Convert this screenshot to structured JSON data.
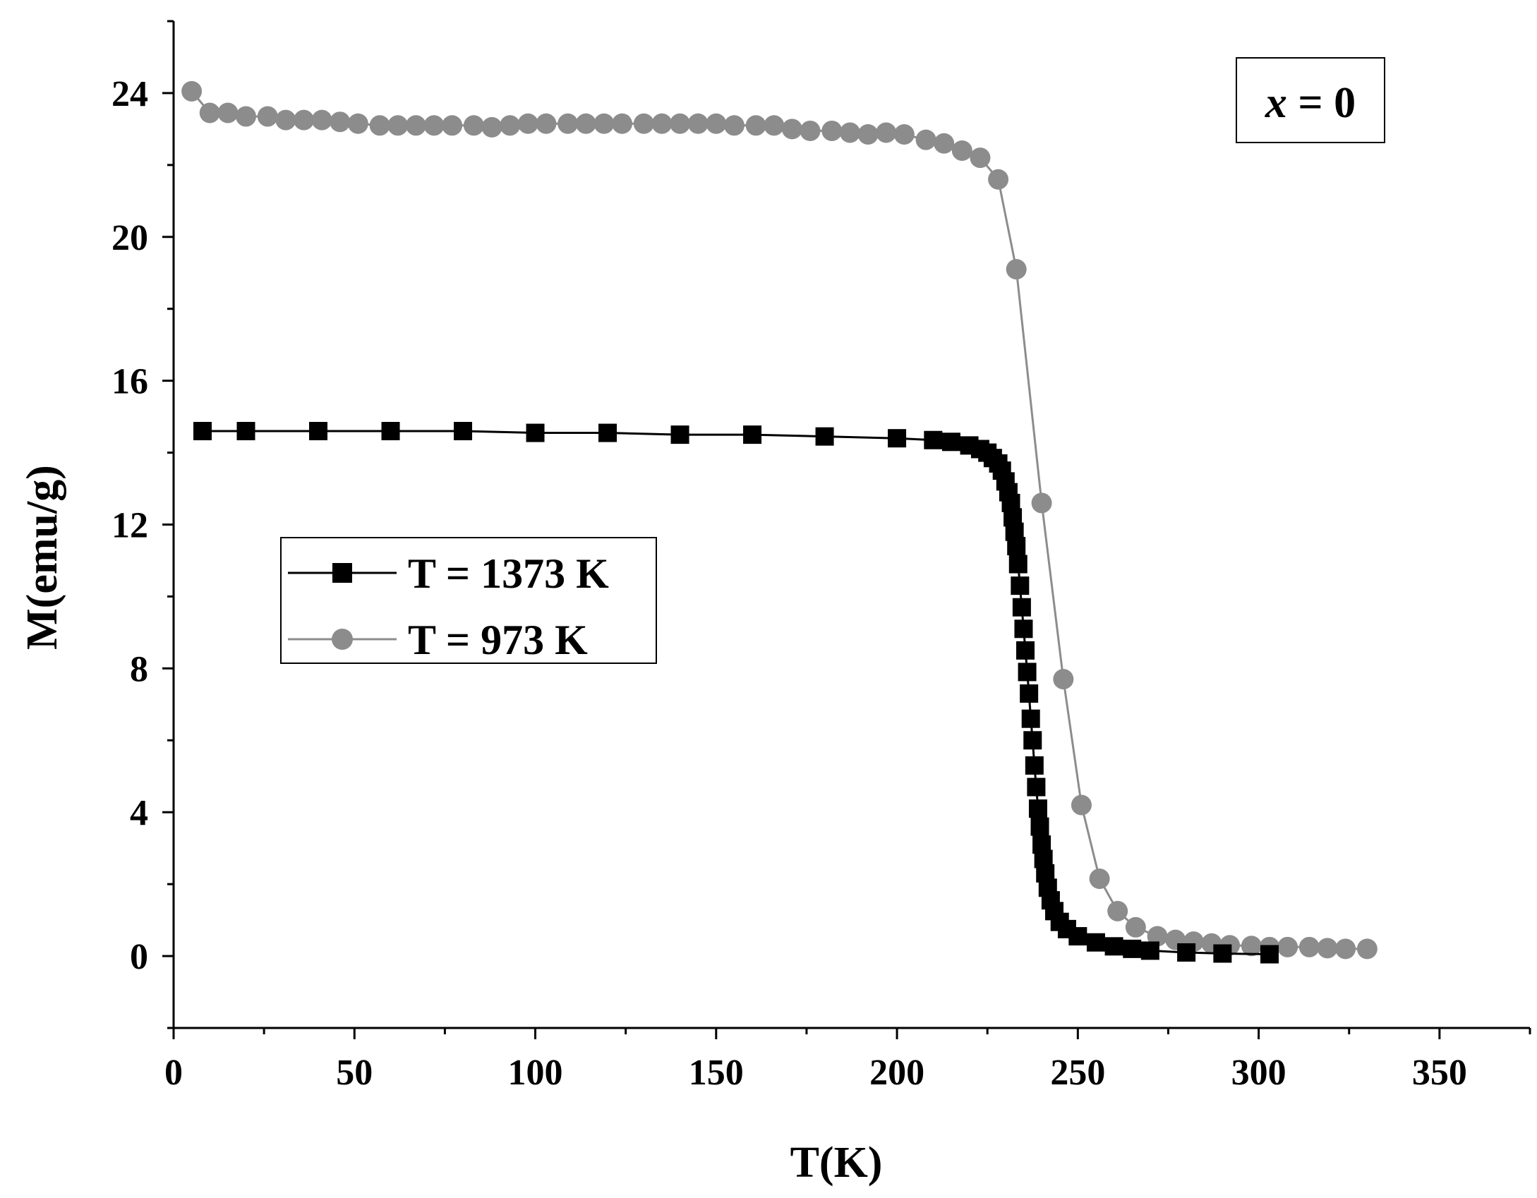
{
  "chart_data": {
    "type": "scatter",
    "title": "",
    "xlabel": "T(K)",
    "ylabel": "M(emu/g)",
    "xlim": [
      0,
      375
    ],
    "ylim": [
      -2,
      26
    ],
    "xticks": [
      0,
      50,
      100,
      150,
      200,
      250,
      300,
      350
    ],
    "yticks": [
      0,
      4,
      8,
      12,
      16,
      20,
      24
    ],
    "grid": false,
    "legend_position": "middle-left",
    "annotation": {
      "italic": "x",
      "rest": " = 0"
    },
    "series": [
      {
        "name": "T = 1373 K",
        "color": "#000000",
        "marker": "square",
        "x": [
          8,
          20,
          40,
          60,
          80,
          100,
          120,
          140,
          160,
          180,
          200,
          210,
          215,
          220,
          223,
          225,
          226.5,
          228,
          229,
          230,
          230.8,
          231.5,
          232,
          232.5,
          233,
          233.5,
          234,
          234.5,
          235,
          235.5,
          236,
          236.5,
          237,
          237.5,
          238,
          238.5,
          239,
          239.5,
          240,
          240.5,
          241,
          241.7,
          242.5,
          243.5,
          245,
          247,
          250,
          255,
          260,
          265,
          270,
          280,
          290,
          303
        ],
        "y": [
          14.6,
          14.6,
          14.6,
          14.6,
          14.6,
          14.55,
          14.55,
          14.5,
          14.5,
          14.45,
          14.4,
          14.35,
          14.3,
          14.2,
          14.1,
          14.0,
          13.85,
          13.7,
          13.5,
          13.2,
          12.9,
          12.6,
          12.2,
          11.8,
          11.4,
          10.9,
          10.3,
          9.7,
          9.1,
          8.5,
          7.9,
          7.3,
          6.6,
          6.0,
          5.3,
          4.7,
          4.1,
          3.6,
          3.1,
          2.7,
          2.3,
          1.9,
          1.55,
          1.25,
          0.95,
          0.75,
          0.55,
          0.38,
          0.27,
          0.2,
          0.15,
          0.1,
          0.07,
          0.05
        ]
      },
      {
        "name": "T = 973 K",
        "color": "#8c8c8c",
        "marker": "circle",
        "x": [
          5,
          10,
          15,
          20,
          26,
          31,
          36,
          41,
          46,
          51,
          57,
          62,
          67,
          72,
          77,
          83,
          88,
          93,
          98,
          103,
          109,
          114,
          119,
          124,
          130,
          135,
          140,
          145,
          150,
          155,
          161,
          166,
          171,
          176,
          182,
          187,
          192,
          197,
          202,
          208,
          213,
          218,
          223,
          228,
          233,
          240,
          246,
          251,
          256,
          261,
          266,
          272,
          277,
          282,
          287,
          292,
          298,
          303,
          308,
          314,
          319,
          324,
          330
        ],
        "y": [
          24.05,
          23.45,
          23.45,
          23.35,
          23.35,
          23.25,
          23.25,
          23.25,
          23.2,
          23.15,
          23.1,
          23.1,
          23.1,
          23.1,
          23.1,
          23.1,
          23.05,
          23.1,
          23.15,
          23.15,
          23.15,
          23.15,
          23.15,
          23.15,
          23.15,
          23.15,
          23.15,
          23.15,
          23.15,
          23.1,
          23.1,
          23.1,
          23.0,
          22.95,
          22.95,
          22.9,
          22.85,
          22.9,
          22.85,
          22.7,
          22.6,
          22.4,
          22.2,
          21.6,
          19.1,
          12.6,
          7.7,
          4.2,
          2.15,
          1.25,
          0.8,
          0.55,
          0.45,
          0.4,
          0.35,
          0.3,
          0.28,
          0.25,
          0.25,
          0.25,
          0.22,
          0.2,
          0.2
        ]
      }
    ]
  }
}
